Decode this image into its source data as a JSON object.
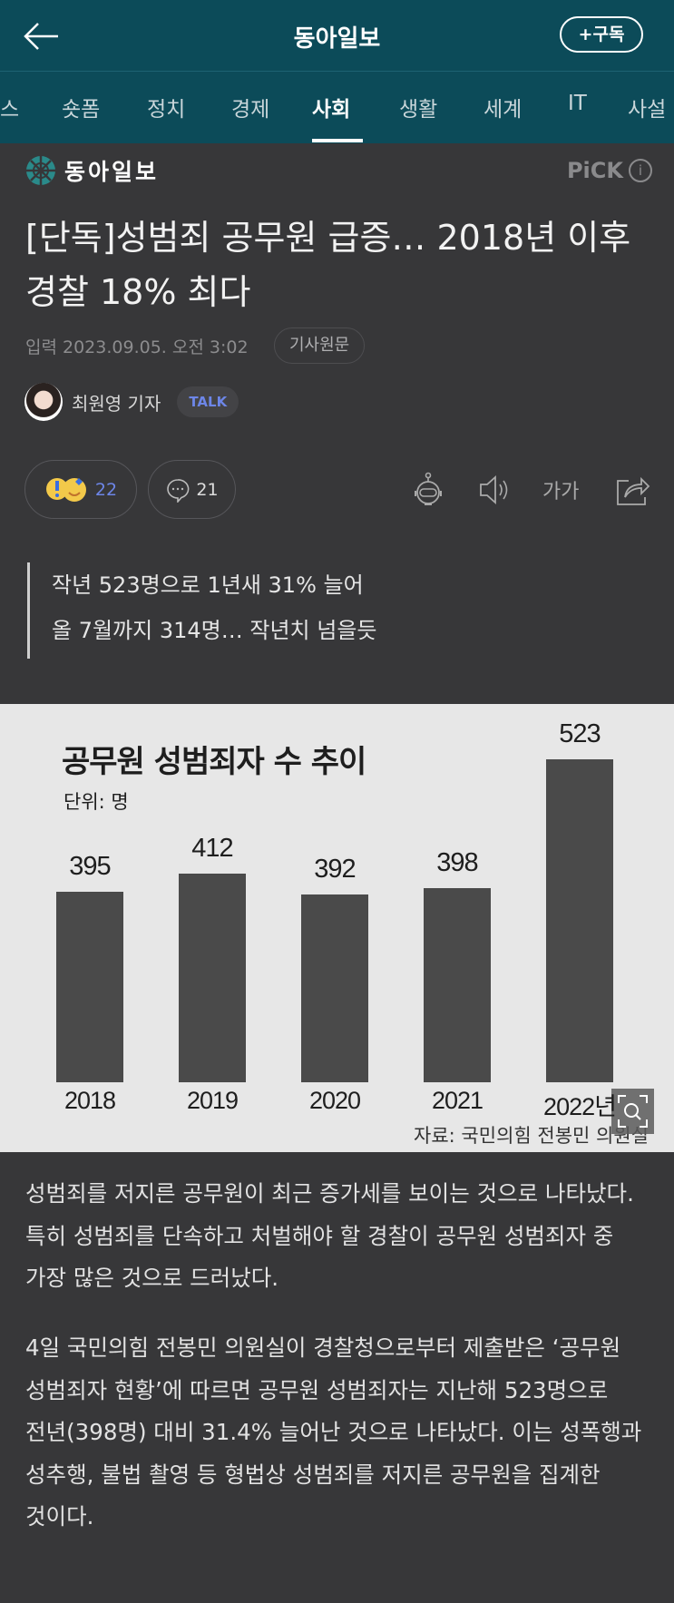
{
  "header": {
    "title": "동아일보",
    "subscribe_label": "+구독"
  },
  "tabs": [
    "스",
    "숏폼",
    "정치",
    "경제",
    "사회",
    "생활",
    "세계",
    "IT",
    "사설"
  ],
  "active_tab": "사회",
  "publisher": {
    "logo_text": "동아일보",
    "pick_label": "PiCK",
    "pick_info": "i"
  },
  "article": {
    "title": "[단독]성범죄 공무원 급증… 2018년 이후 경찰 18% 최다",
    "date": "입력 2023.09.05. 오전 3:02",
    "original_label": "기사원문",
    "author": "최원영 기자",
    "talk_label": "TALK",
    "reaction_count": "22",
    "comment_count": "21",
    "font_icon_label": "가가",
    "summary": [
      "작년 523명으로 1년새 31% 늘어",
      "올 7월까지 314명… 작년치 넘을듯"
    ],
    "paragraphs": [
      "성범죄를 저지른 공무원이 최근 증가세를 보이는 것으로 나타났다. 특히 성범죄를 단속하고 처벌해야 할 경찰이 공무원 성범죄자 중 가장 많은 것으로 드러났다.",
      "4일 국민의힘 전봉민 의원실이 경찰청으로부터 제출받은 ‘공무원 성범죄자 현황’에 따르면 공무원 성범죄자는 지난해 523명으로 전년(398명) 대비 31.4% 늘어난 것으로 나타났다. 이는 성폭행과 성추행, 불법 촬영 등 형법상 성범죄를 저지른 공무원을 집계한 것이다."
    ]
  },
  "chart_data": {
    "type": "bar",
    "title": "공무원 성범죄자 수 추이",
    "unit": "단위: 명",
    "categories": [
      "2018",
      "2019",
      "2020",
      "2021",
      "2022년"
    ],
    "values": [
      395,
      412,
      392,
      398,
      523
    ],
    "source": "자료: 국민의힘 전봉민 의원실",
    "ylim": [
      210,
      523
    ],
    "grid": false,
    "bar_color": "#4a4a4a"
  },
  "colors": {
    "header": "#0c4b59",
    "background": "#373739",
    "talk": "#6d86e8"
  }
}
